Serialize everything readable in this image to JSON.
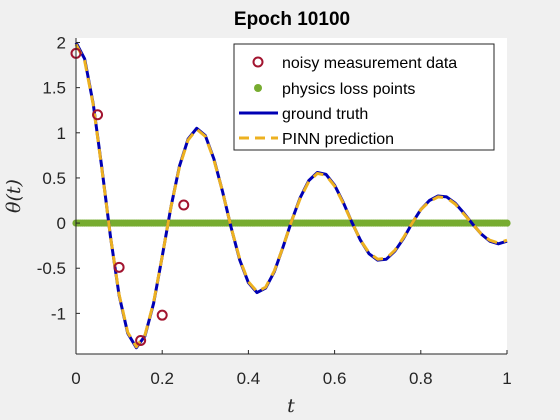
{
  "chart_data": {
    "type": "line",
    "title": "Epoch 10100",
    "xlabel": "t",
    "ylabel": "θ(t)",
    "xlim": [
      0,
      1
    ],
    "ylim": [
      -1.45,
      2.05
    ],
    "xticks": [
      0,
      0.2,
      0.4,
      0.6,
      0.8,
      1
    ],
    "xtick_labels": [
      "0",
      "0.2",
      "0.4",
      "0.6",
      "0.8",
      "1"
    ],
    "yticks": [
      -1,
      -0.5,
      0,
      0.5,
      1,
      1.5,
      2
    ],
    "ytick_labels": [
      "-1",
      "-0.5",
      "0",
      "0.5",
      "1",
      "1.5",
      "2"
    ],
    "grid": false,
    "legend_position": "top-right",
    "series": [
      {
        "name": "noisy measurement data",
        "kind": "scatter",
        "marker": "open-circle",
        "color": "#a2142f",
        "x": [
          0,
          0.05,
          0.1,
          0.15,
          0.2,
          0.25
        ],
        "y": [
          1.88,
          1.2,
          -0.49,
          -1.3,
          -1.02,
          0.2
        ]
      },
      {
        "name": "physics loss points",
        "kind": "scatter",
        "marker": "filled-dot",
        "color": "#77ac30",
        "x_range": [
          0,
          1
        ],
        "y_constant": 0
      },
      {
        "name": "ground truth",
        "kind": "line",
        "style": "solid",
        "color": "#0000b4",
        "x": [
          0,
          0.02,
          0.04,
          0.06,
          0.08,
          0.1,
          0.12,
          0.14,
          0.16,
          0.18,
          0.2,
          0.22,
          0.24,
          0.26,
          0.28,
          0.3,
          0.32,
          0.34,
          0.36,
          0.38,
          0.4,
          0.42,
          0.44,
          0.46,
          0.48,
          0.5,
          0.52,
          0.54,
          0.56,
          0.58,
          0.6,
          0.62,
          0.64,
          0.66,
          0.68,
          0.7,
          0.72,
          0.74,
          0.76,
          0.78,
          0.8,
          0.82,
          0.84,
          0.86,
          0.88,
          0.9,
          0.92,
          0.94,
          0.96,
          0.98,
          1
        ],
        "y": [
          2,
          1.82,
          1.32,
          0.61,
          -0.15,
          -0.8,
          -1.22,
          -1.38,
          -1.25,
          -0.89,
          -0.37,
          0.17,
          0.63,
          0.93,
          1.05,
          0.97,
          0.71,
          0.35,
          -0.05,
          -0.41,
          -0.66,
          -0.77,
          -0.72,
          -0.54,
          -0.27,
          0.02,
          0.28,
          0.47,
          0.56,
          0.54,
          0.42,
          0.23,
          0.01,
          -0.19,
          -0.34,
          -0.41,
          -0.4,
          -0.31,
          -0.17,
          0,
          0.15,
          0.25,
          0.3,
          0.29,
          0.22,
          0.11,
          -0.01,
          -0.12,
          -0.2,
          -0.23,
          -0.2
        ]
      },
      {
        "name": "PINN prediction",
        "kind": "line",
        "style": "dashed",
        "color": "#edb120",
        "x": [
          0,
          0.02,
          0.04,
          0.06,
          0.08,
          0.1,
          0.12,
          0.14,
          0.16,
          0.18,
          0.2,
          0.22,
          0.24,
          0.26,
          0.28,
          0.3,
          0.32,
          0.34,
          0.36,
          0.38,
          0.4,
          0.42,
          0.44,
          0.46,
          0.48,
          0.5,
          0.52,
          0.54,
          0.56,
          0.58,
          0.6,
          0.62,
          0.64,
          0.66,
          0.68,
          0.7,
          0.72,
          0.74,
          0.76,
          0.78,
          0.8,
          0.82,
          0.84,
          0.86,
          0.88,
          0.9,
          0.92,
          0.94,
          0.96,
          0.98,
          1
        ],
        "y": [
          1.98,
          1.8,
          1.31,
          0.6,
          -0.15,
          -0.79,
          -1.21,
          -1.37,
          -1.24,
          -0.88,
          -0.37,
          0.17,
          0.62,
          0.92,
          1.04,
          0.96,
          0.7,
          0.35,
          -0.05,
          -0.4,
          -0.65,
          -0.76,
          -0.71,
          -0.53,
          -0.27,
          0.02,
          0.27,
          0.46,
          0.55,
          0.53,
          0.41,
          0.22,
          0.01,
          -0.19,
          -0.33,
          -0.4,
          -0.39,
          -0.3,
          -0.16,
          0,
          0.15,
          0.24,
          0.29,
          0.28,
          0.21,
          0.1,
          -0.01,
          -0.12,
          -0.19,
          -0.22,
          -0.19
        ]
      }
    ]
  }
}
